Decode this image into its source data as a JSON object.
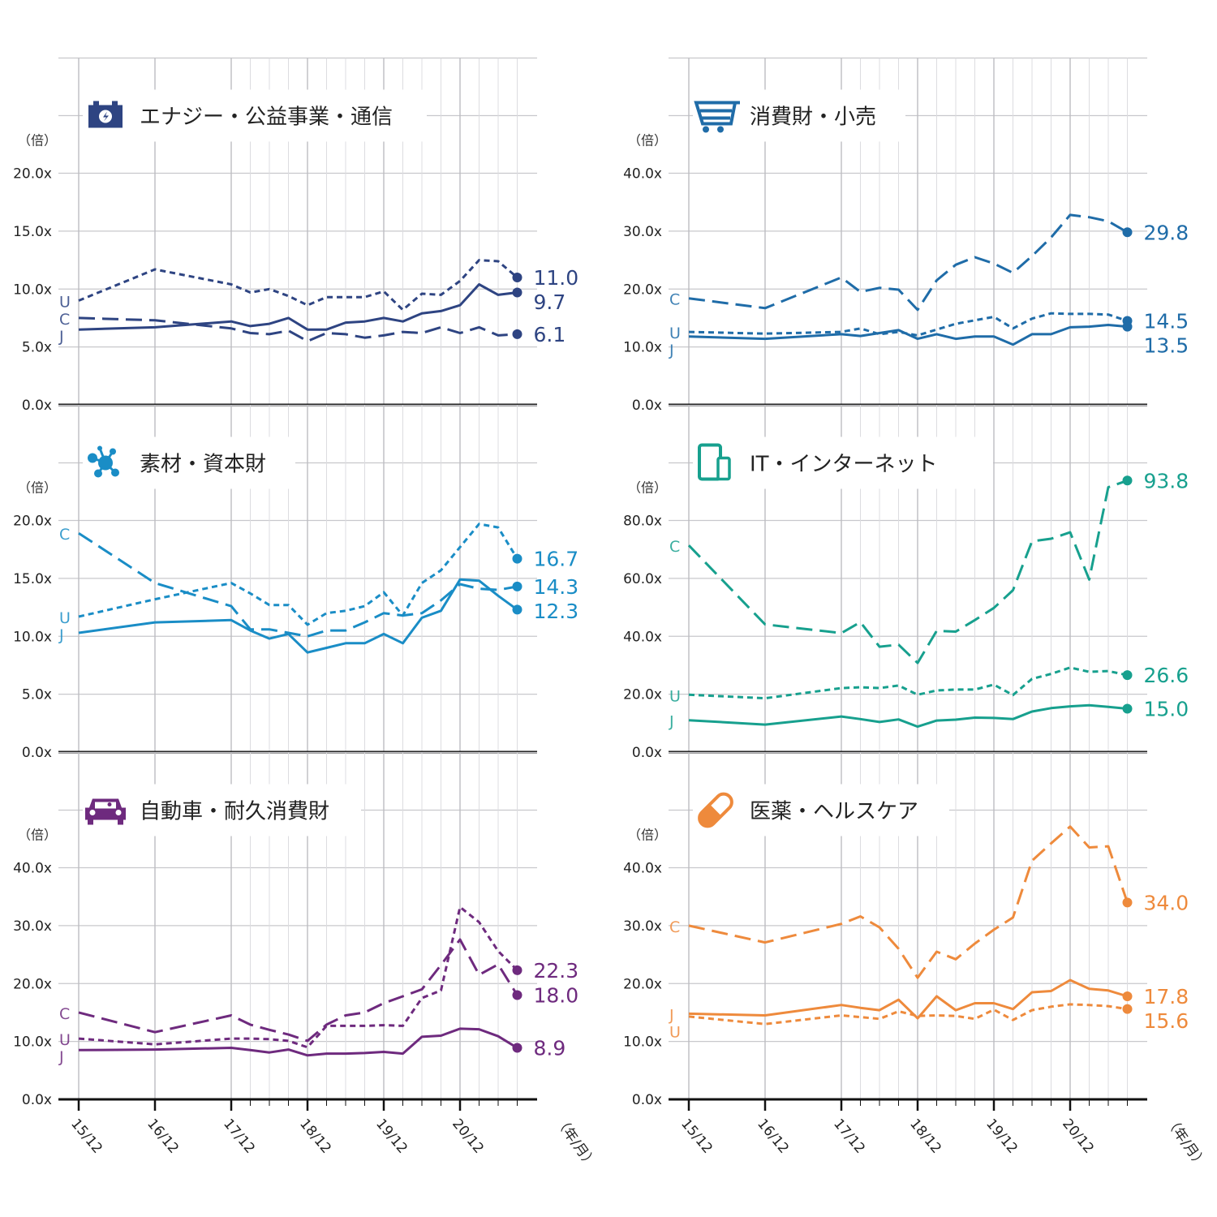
{
  "x_categories": [
    "15/12",
    "16/12",
    "17/12",
    "18/3",
    "18/6",
    "18/9",
    "18/12",
    "19/3",
    "19/6",
    "19/9",
    "19/12",
    "20/3",
    "20/6",
    "20/9",
    "20/12",
    "21/3",
    "21/6",
    "21/9"
  ],
  "x_tick_labels": [
    "15/12",
    "16/12",
    "17/12",
    "18/12",
    "19/12",
    "20/12"
  ],
  "x_axis_unit": "（年/月）",
  "y_axis_unit": "（倍）",
  "series_styles": {
    "J": "solid",
    "U": "dotted",
    "C": "dashed"
  },
  "chart_data": [
    {
      "type": "line",
      "title": "エナジー・公益事業・通信",
      "icon": "battery-icon",
      "color": "#2e4482",
      "ylim": [
        0,
        20
      ],
      "yticks": [
        "0.0x",
        "5.0x",
        "10.0x",
        "15.0x",
        "20.0x"
      ],
      "ytick_values": [
        0,
        5,
        10,
        15,
        20
      ],
      "ylabel": "（倍）",
      "series": [
        {
          "name": "U",
          "values": [
            9.0,
            11.7,
            10.4,
            9.7,
            10.0,
            9.4,
            8.6,
            9.3,
            9.3,
            9.3,
            9.8,
            8.2,
            9.6,
            9.5,
            10.7,
            12.5,
            12.4,
            11.0
          ],
          "end_label": "11.0"
        },
        {
          "name": "C",
          "values": [
            7.5,
            7.3,
            6.6,
            6.2,
            6.1,
            6.4,
            5.5,
            6.2,
            6.1,
            5.8,
            6.0,
            6.3,
            6.2,
            6.7,
            6.2,
            6.7,
            6.0,
            6.1
          ],
          "end_label": "6.1"
        },
        {
          "name": "J",
          "values": [
            6.5,
            6.7,
            7.2,
            6.8,
            7.0,
            7.5,
            6.5,
            6.5,
            7.1,
            7.2,
            7.5,
            7.2,
            7.9,
            8.1,
            8.6,
            10.4,
            9.5,
            9.7
          ],
          "end_label": "9.7"
        }
      ],
      "label_order": [
        "U",
        "C",
        "J"
      ]
    },
    {
      "type": "line",
      "title": "消費財・小売",
      "icon": "shopping-cart-icon",
      "color": "#1f6ca8",
      "ylim": [
        0,
        40
      ],
      "yticks": [
        "0.0x",
        "10.0x",
        "20.0x",
        "30.0x",
        "40.0x"
      ],
      "ytick_values": [
        0,
        10,
        20,
        30,
        40
      ],
      "ylabel": "（倍）",
      "series": [
        {
          "name": "C",
          "values": [
            18.4,
            16.7,
            22.0,
            19.5,
            20.2,
            19.9,
            16.4,
            21.5,
            24.2,
            25.5,
            24.4,
            22.8,
            25.7,
            28.9,
            32.8,
            32.4,
            31.7,
            29.8
          ],
          "end_label": "29.8"
        },
        {
          "name": "U",
          "values": [
            12.6,
            12.3,
            12.6,
            13.2,
            12.2,
            12.6,
            12.0,
            13.0,
            14.0,
            14.6,
            15.2,
            13.2,
            14.9,
            15.8,
            15.7,
            15.7,
            15.6,
            14.5
          ],
          "end_label": "14.5"
        },
        {
          "name": "J",
          "values": [
            11.8,
            11.4,
            12.2,
            11.9,
            12.4,
            12.9,
            11.4,
            12.2,
            11.4,
            11.8,
            11.8,
            10.4,
            12.2,
            12.2,
            13.4,
            13.5,
            13.8,
            13.5
          ],
          "end_label": "13.5"
        }
      ],
      "label_order": [
        "C",
        "U",
        "J"
      ]
    },
    {
      "type": "line",
      "title": "素材・資本財",
      "icon": "molecule-icon",
      "color": "#1a8dc6",
      "ylim": [
        0,
        20
      ],
      "yticks": [
        "0.0x",
        "5.0x",
        "10.0x",
        "15.0x",
        "20.0x"
      ],
      "ytick_values": [
        0,
        5,
        10,
        15,
        20
      ],
      "ylabel": "（倍）",
      "series": [
        {
          "name": "C",
          "values": [
            18.9,
            14.6,
            12.6,
            10.6,
            10.6,
            10.3,
            10.0,
            10.5,
            10.5,
            11.2,
            12.0,
            11.8,
            12.0,
            13.1,
            14.5,
            14.1,
            14.0,
            14.3
          ],
          "end_label": "14.3"
        },
        {
          "name": "U",
          "values": [
            11.7,
            13.2,
            14.6,
            13.7,
            12.7,
            12.7,
            11.0,
            12.0,
            12.2,
            12.6,
            13.8,
            11.8,
            14.6,
            15.7,
            17.7,
            19.7,
            19.4,
            16.7
          ],
          "end_label": "16.7"
        },
        {
          "name": "J",
          "values": [
            10.3,
            11.2,
            11.4,
            10.5,
            9.8,
            10.2,
            8.6,
            9.0,
            9.4,
            9.4,
            10.2,
            9.4,
            11.6,
            12.2,
            14.9,
            14.8,
            13.5,
            12.3
          ],
          "end_label": "12.3"
        }
      ],
      "label_order": [
        "C",
        "U",
        "J"
      ]
    },
    {
      "type": "line",
      "title": "IT・インターネット",
      "icon": "tablet-phone-icon",
      "color": "#17a08e",
      "ylim": [
        0,
        80
      ],
      "yticks": [
        "0.0x",
        "20.0x",
        "40.0x",
        "60.0x",
        "80.0x"
      ],
      "ytick_values": [
        0,
        20,
        40,
        60,
        80
      ],
      "ylabel": "（倍）",
      "series": [
        {
          "name": "C",
          "values": [
            71.4,
            44.1,
            41.1,
            44.9,
            36.4,
            37.1,
            30.8,
            41.9,
            41.6,
            45.6,
            49.8,
            55.9,
            72.8,
            73.7,
            75.9,
            59.6,
            91.5,
            93.8
          ],
          "end_label": "93.8"
        },
        {
          "name": "U",
          "values": [
            19.8,
            18.6,
            22.1,
            22.4,
            22.1,
            23.0,
            19.8,
            21.3,
            21.6,
            21.6,
            23.3,
            19.7,
            25.3,
            27.0,
            29.2,
            27.7,
            28.0,
            26.6
          ],
          "end_label": "26.6"
        },
        {
          "name": "J",
          "values": [
            11.0,
            9.5,
            12.3,
            11.4,
            10.4,
            11.3,
            8.8,
            10.9,
            11.2,
            11.9,
            11.8,
            11.4,
            14.0,
            15.2,
            15.8,
            16.2,
            15.6,
            15.0
          ],
          "end_label": "15.0"
        }
      ],
      "label_order": [
        "C",
        "U",
        "J"
      ]
    },
    {
      "type": "line",
      "title": "自動車・耐久消費財",
      "icon": "car-icon",
      "color": "#6e2a7e",
      "ylim": [
        0,
        40
      ],
      "yticks": [
        "0.0x",
        "10.0x",
        "20.0x",
        "30.0x",
        "40.0x"
      ],
      "ytick_values": [
        0,
        10,
        20,
        30,
        40
      ],
      "ylabel": "（倍）",
      "series": [
        {
          "name": "C",
          "values": [
            15.0,
            11.6,
            14.5,
            12.9,
            12.0,
            11.2,
            10.1,
            12.9,
            14.5,
            15.0,
            16.6,
            17.8,
            19.0,
            23.2,
            27.6,
            21.5,
            23.3,
            18.0
          ],
          "end_label": "18.0"
        },
        {
          "name": "U",
          "values": [
            10.5,
            9.5,
            10.5,
            10.5,
            10.4,
            10.1,
            9.0,
            12.7,
            12.7,
            12.7,
            12.8,
            12.7,
            17.5,
            18.8,
            33.2,
            30.6,
            25.6,
            22.3
          ],
          "end_label": "22.3"
        },
        {
          "name": "J",
          "values": [
            8.5,
            8.6,
            8.9,
            8.5,
            8.1,
            8.6,
            7.6,
            7.9,
            7.9,
            8.0,
            8.2,
            7.9,
            10.8,
            11.0,
            12.2,
            12.1,
            10.9,
            8.9
          ],
          "end_label": "8.9"
        }
      ],
      "label_order": [
        "C",
        "U",
        "J"
      ]
    },
    {
      "type": "line",
      "title": "医薬・ヘルスケア",
      "icon": "pill-capsule-icon",
      "color": "#ee8a3c",
      "ylim": [
        0,
        40
      ],
      "yticks": [
        "0.0x",
        "10.0x",
        "20.0x",
        "30.0x",
        "40.0x"
      ],
      "ytick_values": [
        0,
        10,
        20,
        30,
        40
      ],
      "ylabel": "（倍）",
      "series": [
        {
          "name": "C",
          "values": [
            30.0,
            27.1,
            30.3,
            31.6,
            29.7,
            26.0,
            21.0,
            25.5,
            24.2,
            26.9,
            29.3,
            31.4,
            41.2,
            44.2,
            47.1,
            43.5,
            43.7,
            34.0
          ],
          "end_label": "34.0"
        },
        {
          "name": "J",
          "values": [
            14.8,
            14.5,
            16.3,
            15.8,
            15.4,
            17.2,
            14.0,
            17.8,
            15.4,
            16.6,
            16.6,
            15.6,
            18.5,
            18.7,
            20.6,
            19.1,
            18.8,
            17.8
          ],
          "end_label": "17.8"
        },
        {
          "name": "U",
          "values": [
            14.3,
            13.0,
            14.5,
            14.2,
            13.9,
            15.2,
            14.4,
            14.5,
            14.4,
            13.9,
            15.5,
            13.7,
            15.4,
            16.0,
            16.4,
            16.3,
            16.1,
            15.6
          ],
          "end_label": "15.6"
        }
      ],
      "label_order": [
        "C",
        "J",
        "U"
      ]
    }
  ]
}
